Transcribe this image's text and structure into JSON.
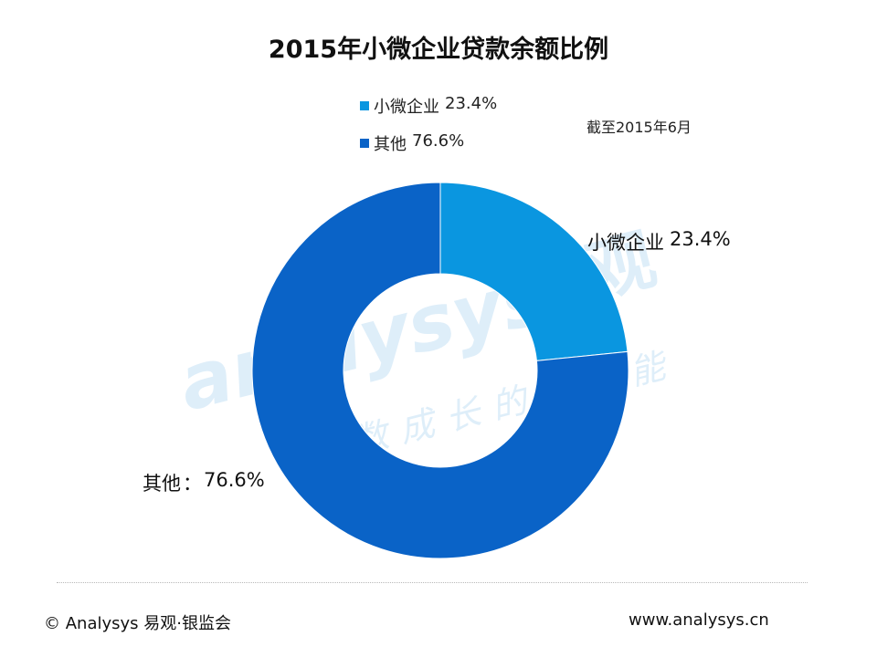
{
  "watermark": {
    "brand": "analysys",
    "brand_cn": "观",
    "slogan": "指数成长的驱动能"
  },
  "note": "截至2015年6月",
  "footer": {
    "copyright": "© Analysys 易观·银监会",
    "url": "www.analysys.cn"
  },
  "colors": {
    "small_micro": "#0a96e0",
    "other": "#0a63c7",
    "background": "#ffffff"
  },
  "chart_data": {
    "type": "pie",
    "donut": true,
    "title": "2015年小微企业贷款余额比例",
    "categories": [
      "小微企业",
      "其他"
    ],
    "values": [
      23.4,
      76.6
    ],
    "value_labels": [
      "23.4%",
      "76.6%"
    ],
    "unit": "%",
    "legend": {
      "placement": "top-center",
      "entries": [
        {
          "label": "小微企业",
          "value": "23.4%"
        },
        {
          "label": "其他",
          "value": "76.6%"
        }
      ]
    },
    "data_labels": [
      {
        "label": "小微企业",
        "separator": "",
        "value": "23.4%"
      },
      {
        "label": "其他",
        "separator": "：",
        "value": "76.6%"
      }
    ]
  }
}
